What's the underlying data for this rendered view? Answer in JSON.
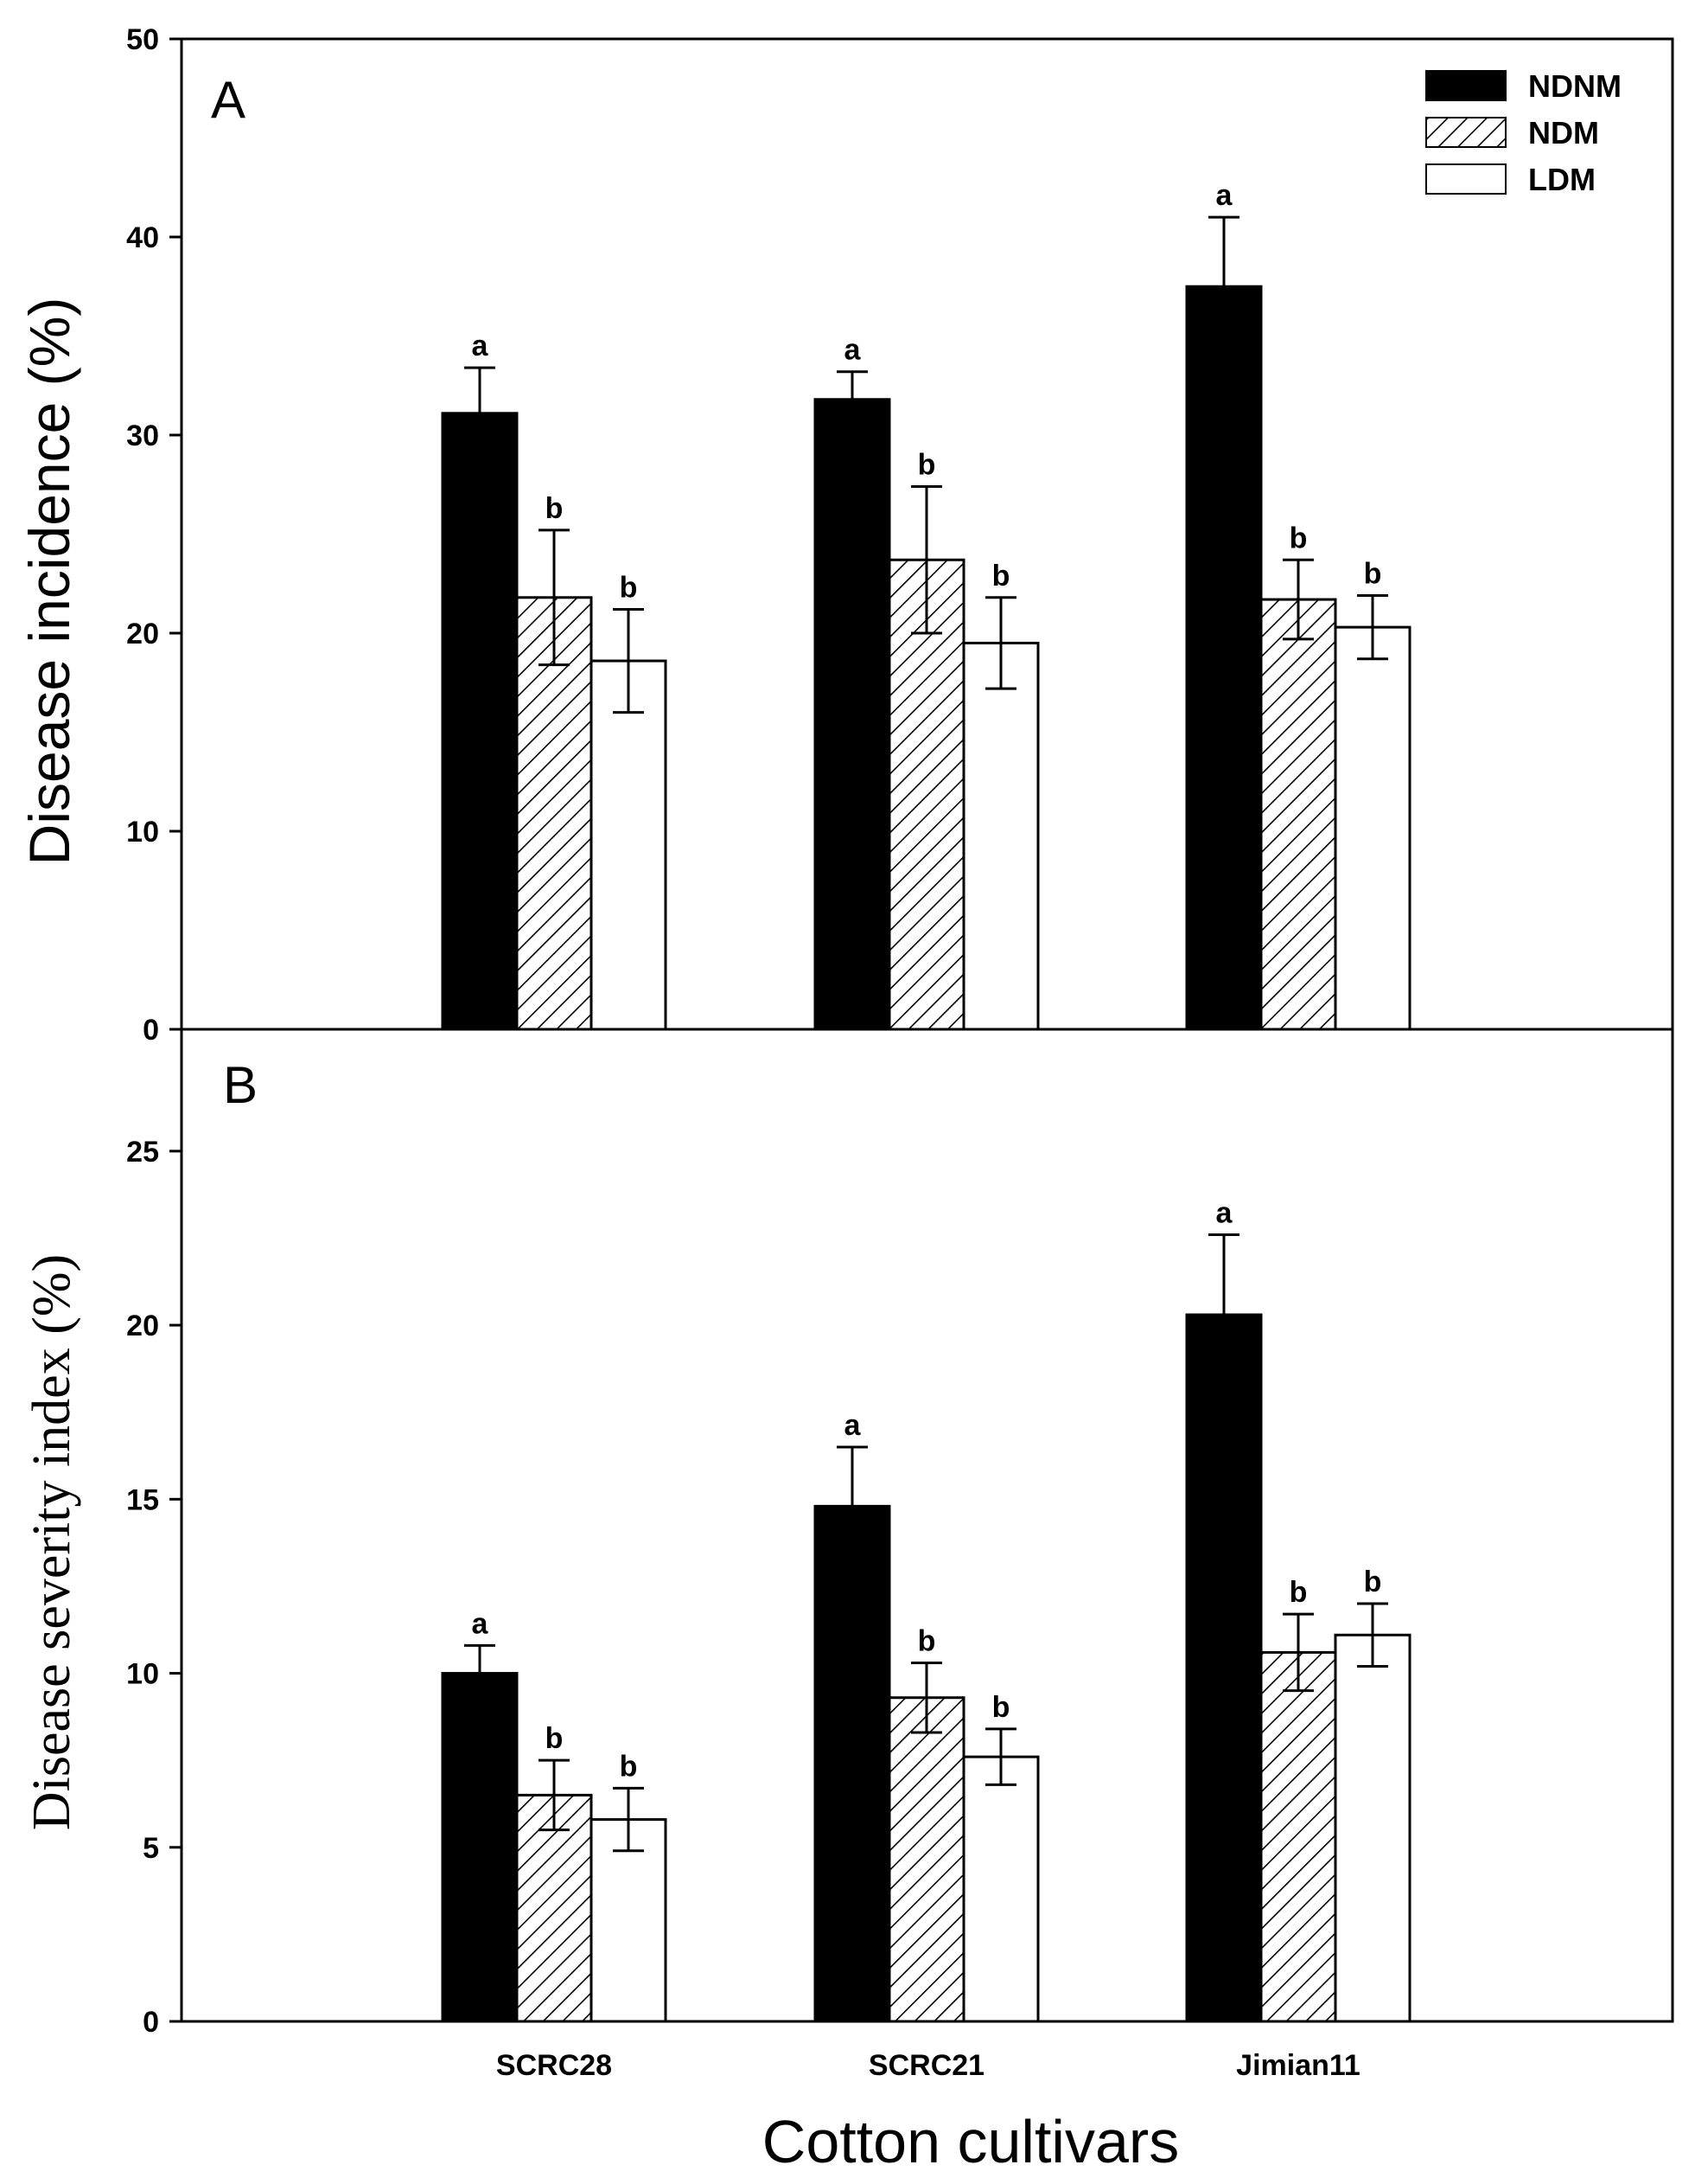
{
  "chart_data": [
    {
      "type": "bar",
      "panel": "A",
      "title": "",
      "xlabel": "",
      "ylabel": "Disease incidence (%)",
      "ylim": [
        0,
        50
      ],
      "yticks": [
        "0",
        "10",
        "20",
        "30",
        "40",
        "50"
      ],
      "categories": [
        "SCRC28",
        "SCRC21",
        "Jimian11"
      ],
      "series": [
        {
          "name": "NDNM",
          "fill": "solid",
          "values": [
            31.1,
            31.8,
            37.5
          ],
          "errors": [
            2.3,
            1.4,
            3.5
          ],
          "labels": [
            "a",
            "a",
            "a"
          ]
        },
        {
          "name": "NDM",
          "fill": "hatched",
          "values": [
            21.8,
            23.7,
            21.7
          ],
          "errors": [
            3.4,
            3.7,
            2.0
          ],
          "labels": [
            "b",
            "b",
            "b"
          ]
        },
        {
          "name": "LDM",
          "fill": "open",
          "values": [
            18.6,
            19.5,
            20.3
          ],
          "errors": [
            2.6,
            2.3,
            1.6
          ],
          "labels": [
            "b",
            "b",
            "b"
          ]
        }
      ],
      "legend": "top-right"
    },
    {
      "type": "bar",
      "panel": "B",
      "title": "",
      "xlabel": "Cotton cultivars",
      "ylabel": "Disease severity index (%)",
      "ylim": [
        0,
        28.5
      ],
      "yticks": [
        "0",
        "5",
        "10",
        "15",
        "20",
        "25"
      ],
      "categories": [
        "SCRC28",
        "SCRC21",
        "Jimian11"
      ],
      "series": [
        {
          "name": "NDNM",
          "fill": "solid",
          "values": [
            10.0,
            14.8,
            20.3
          ],
          "errors": [
            0.8,
            1.7,
            2.3
          ],
          "labels": [
            "a",
            "a",
            "a"
          ]
        },
        {
          "name": "NDM",
          "fill": "hatched",
          "values": [
            6.5,
            9.3,
            10.6
          ],
          "errors": [
            1.0,
            1.0,
            1.1
          ],
          "labels": [
            "b",
            "b",
            "b"
          ]
        },
        {
          "name": "LDM",
          "fill": "open",
          "values": [
            5.8,
            7.6,
            11.1
          ],
          "errors": [
            0.9,
            0.8,
            0.9
          ],
          "labels": [
            "b",
            "b",
            "b"
          ]
        }
      ]
    }
  ],
  "colors": {
    "axis": "#000000",
    "bar_solid": "#000000",
    "bar_open": "#ffffff"
  }
}
